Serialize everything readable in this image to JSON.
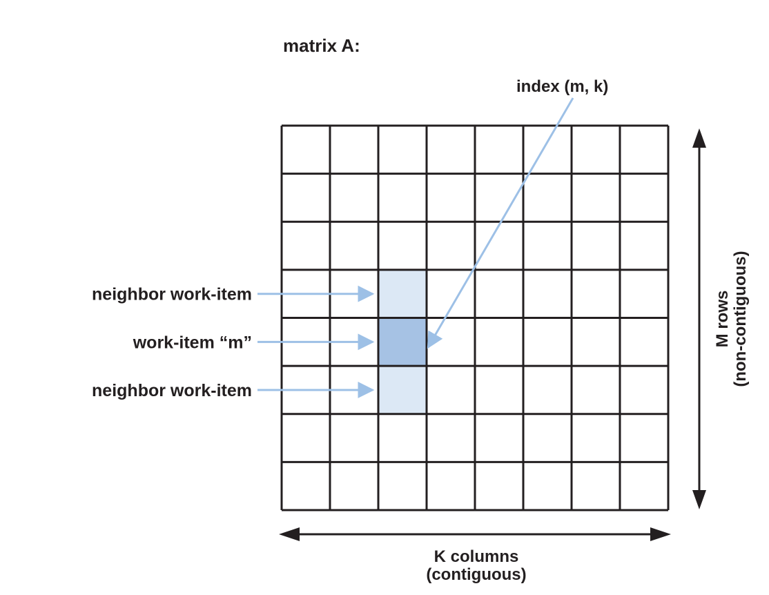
{
  "title": "matrix A:",
  "index_label": "index (m, k)",
  "rows_label": [
    "M rows",
    "(non-contiguous)"
  ],
  "columns_label": [
    "K columns",
    "(contiguous)"
  ],
  "matrix": {
    "rows": 8,
    "cols": 8
  },
  "work_items": [
    {
      "label": "neighbor work-item",
      "row": 3,
      "col": 2,
      "role": "neighbor"
    },
    {
      "label": "work-item “m”",
      "row": 4,
      "col": 2,
      "role": "current"
    },
    {
      "label": "neighbor work-item",
      "row": 5,
      "col": 2,
      "role": "neighbor"
    }
  ],
  "colors": {
    "grid": "#231f20",
    "neighbor_fill": "#dce8f5",
    "current_fill": "#a6c2e4",
    "pointer": "#9dc0e6",
    "axis_arrow": "#231f20"
  }
}
